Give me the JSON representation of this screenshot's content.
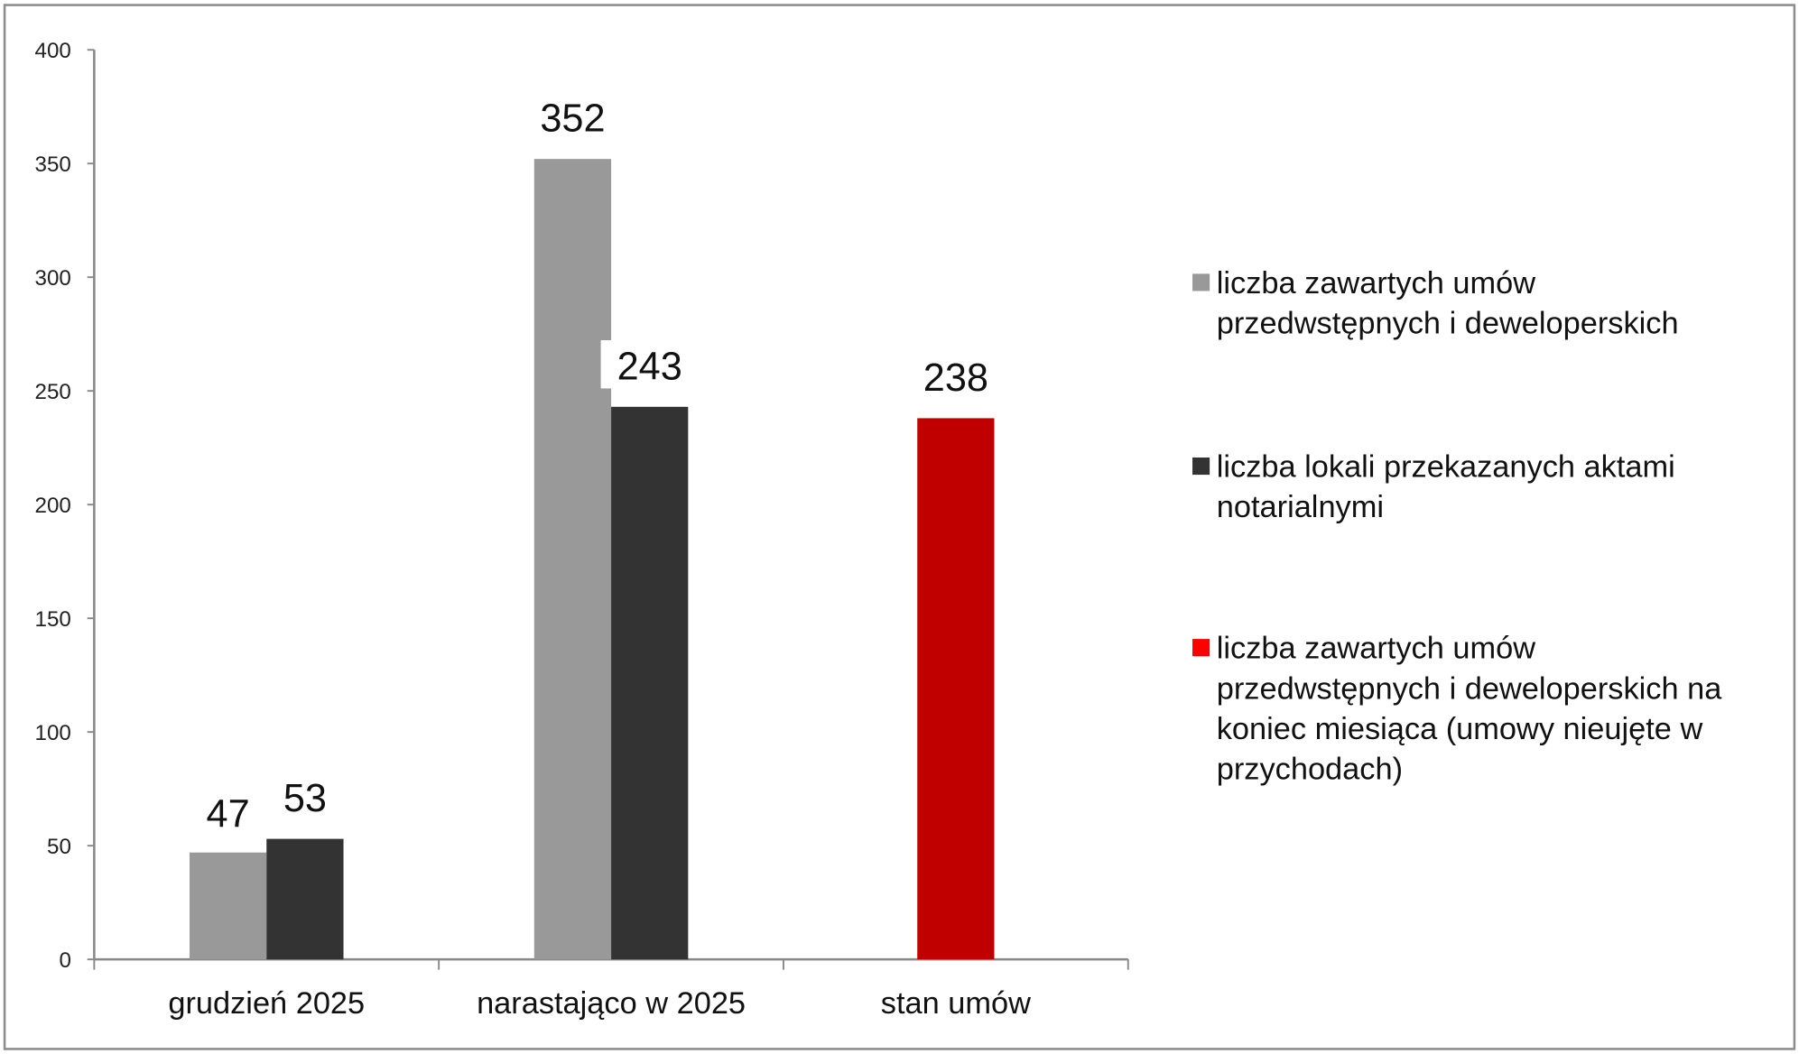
{
  "chart_data": {
    "type": "bar",
    "title": "",
    "xlabel": "",
    "ylabel": "",
    "ylim": [
      0,
      400
    ],
    "yticks": [
      "0",
      "50",
      "100",
      "150",
      "200",
      "250",
      "300",
      "350",
      "400"
    ],
    "grid": false,
    "legend_position": "right",
    "categories": [
      "grudzień 2025",
      "narastająco w 2025",
      "stan umów"
    ],
    "series": [
      {
        "name": "liczba zawartych umów przedwstępnych i deweloperskich",
        "legend_lines": [
          "liczba zawartych umów",
          "przedwstępnych i deweloperskich"
        ],
        "color": "#999999",
        "legend_color": "#999999",
        "values": [
          47,
          352,
          null
        ],
        "labels": [
          "47",
          "352",
          ""
        ]
      },
      {
        "name": "liczba lokali przekazanych aktami notarialnymi",
        "legend_lines": [
          "liczba lokali przekazanych aktami",
          "notarialnymi"
        ],
        "color": "#333333",
        "legend_color": "#333333",
        "values": [
          53,
          243,
          null
        ],
        "labels": [
          "53",
          "243",
          ""
        ]
      },
      {
        "name": "liczba zawartych umów przedwstępnych i deweloperskich na koniec miesiąca (umowy nieujęte w przychodach)",
        "legend_lines": [
          "liczba zawartych umów",
          "przedwstępnych i deweloperskich na",
          "koniec miesiąca (umowy nieujęte w",
          "przychodach)"
        ],
        "color": "#C00000",
        "legend_color": "#FF0000",
        "values": [
          null,
          null,
          238
        ],
        "labels": [
          "",
          "",
          "238"
        ]
      }
    ]
  }
}
